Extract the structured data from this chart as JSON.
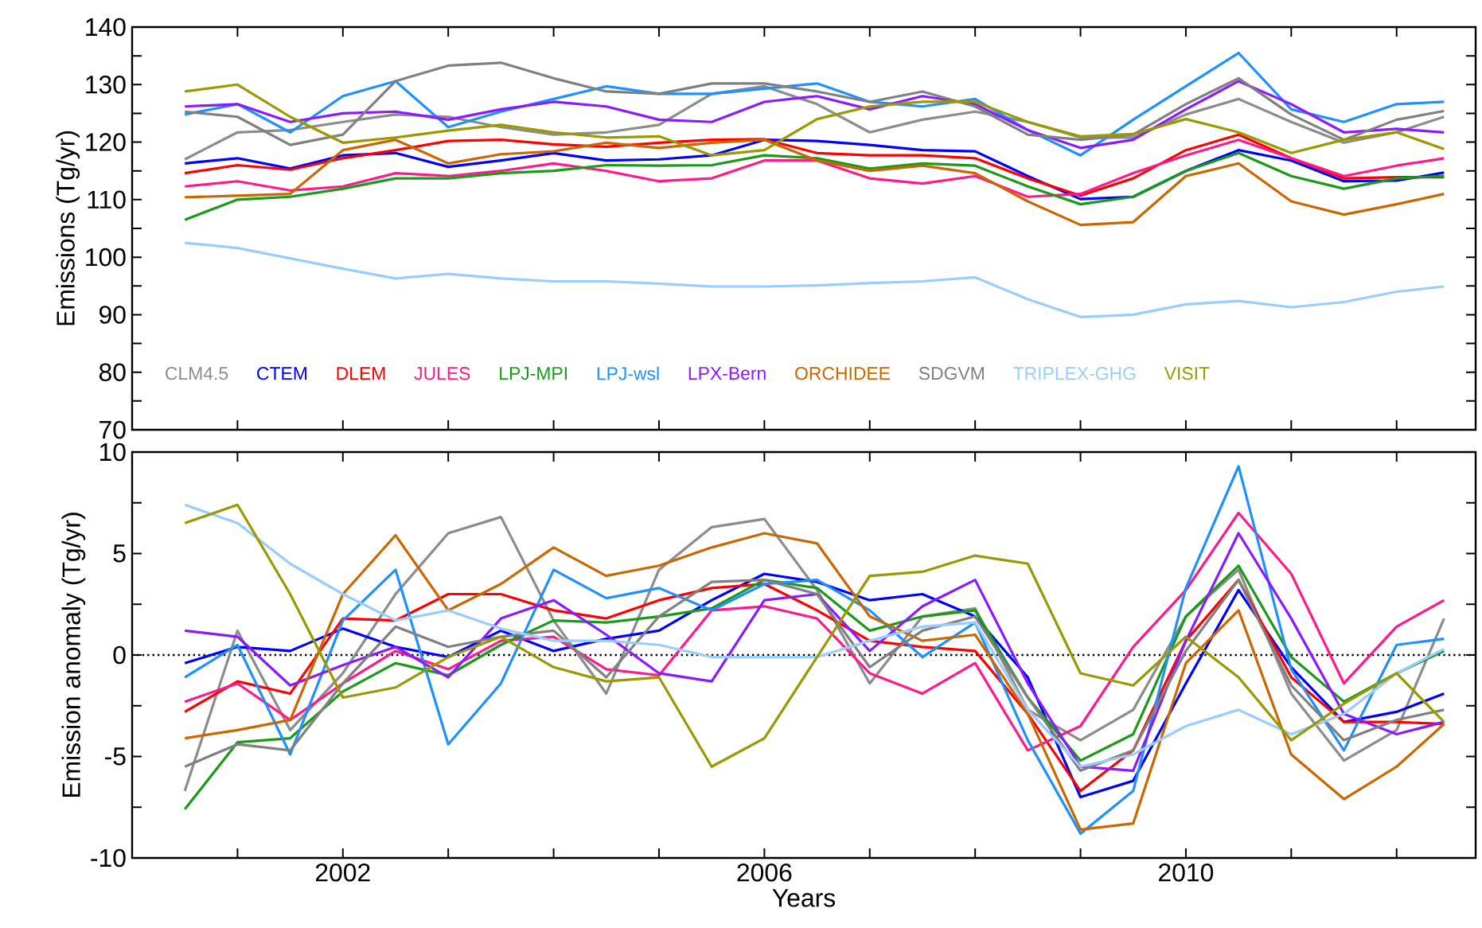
{
  "chart_data": [
    {
      "type": "line",
      "ylabel": "Emissions (Tg/yr)",
      "legend": "bottom",
      "tick_labels": "y",
      "x": [
        2000.5,
        2001,
        2001.5,
        2002,
        2002.5,
        2003,
        2003.5,
        2004,
        2004.5,
        2005,
        2005.5,
        2006,
        2006.5,
        2007,
        2007.5,
        2008,
        2008.5,
        2009,
        2009.5,
        2010,
        2010.5,
        2011,
        2011.5,
        2012,
        2012.45
      ],
      "xlim": [
        2000,
        2012.75
      ],
      "xticks": [
        {
          "value": 2001,
          "label": null
        },
        2002,
        {
          "value": 2003,
          "label": null
        },
        {
          "value": 2004,
          "label": null
        },
        {
          "value": 2005,
          "label": null
        },
        2006,
        {
          "value": 2007,
          "label": null
        },
        {
          "value": 2008,
          "label": null
        },
        {
          "value": 2009,
          "label": null
        },
        2010,
        {
          "value": 2011,
          "label": null
        },
        {
          "value": 2012,
          "label": null
        }
      ],
      "ylim": [
        70,
        140
      ],
      "yticks": [
        70,
        {
          "value": 75,
          "label": null
        },
        80,
        {
          "value": 85,
          "label": null
        },
        90,
        {
          "value": 95,
          "label": null
        },
        100,
        {
          "value": 105,
          "label": null
        },
        110,
        {
          "value": 115,
          "label": null
        },
        120,
        {
          "value": 125,
          "label": null
        },
        130,
        {
          "value": 135,
          "label": null
        },
        140
      ],
      "series": [
        {
          "name": "CLM4.5",
          "color": "#8c8c8c",
          "values": [
            117,
            121.7,
            122.1,
            123.5,
            124.8,
            124.4,
            122.6,
            121.3,
            121.7,
            123,
            128.4,
            129.7,
            126.6,
            121.7,
            123.9,
            125.3,
            123.5,
            120.8,
            120.8,
            124.8,
            127.5,
            123.5,
            119.9,
            121.7,
            124.4
          ]
        },
        {
          "name": "CTEM",
          "color": "#0000ff",
          "values": [
            116.3,
            117.2,
            115.4,
            117.7,
            118.1,
            115.7,
            116.8,
            118.1,
            116.8,
            117,
            117.7,
            120.4,
            120.2,
            119.5,
            118.6,
            118.4,
            114.1,
            110.1,
            110.5,
            115,
            118.6,
            116.8,
            113.2,
            113.3,
            114.7
          ]
        },
        {
          "name": "DLEM",
          "color": "#ff0000",
          "values": [
            114.6,
            116,
            115.2,
            117.2,
            118.6,
            120.2,
            120.4,
            119.6,
            119.2,
            119.9,
            120.4,
            120.5,
            118.1,
            117.7,
            117.7,
            117.2,
            113.7,
            110.7,
            113.7,
            118.6,
            121.3,
            117.2,
            113.7,
            113.9,
            113.9
          ]
        },
        {
          "name": "JULES",
          "color": "#ff1a8c",
          "values": [
            112.3,
            113.2,
            111.6,
            112.3,
            114.6,
            114.1,
            115,
            116.3,
            115,
            113.2,
            113.7,
            116.8,
            116.8,
            113.7,
            112.8,
            114.1,
            110.5,
            111,
            114.6,
            117.7,
            120.4,
            117.2,
            114.1,
            115.9,
            117.2
          ]
        },
        {
          "name": "LPJ-MPI",
          "color": "#1a9a1a",
          "values": [
            106.5,
            110,
            110.5,
            111.9,
            113.7,
            113.7,
            114.6,
            115,
            116,
            115.9,
            116,
            117.7,
            117.2,
            115.4,
            116.3,
            115.9,
            112.3,
            109.2,
            110.5,
            115,
            118.1,
            114.1,
            111.9,
            113.7,
            114.1
          ]
        },
        {
          "name": "LPJ-wsl",
          "color": "#1e90ff",
          "values": [
            124.8,
            126.6,
            121.7,
            128,
            130.6,
            122.6,
            125.3,
            127.5,
            129.7,
            128.4,
            128.4,
            129.3,
            130.2,
            127,
            126.2,
            127.5,
            122.1,
            117.7,
            123.9,
            129.7,
            135.5,
            125.7,
            123.5,
            126.6,
            127
          ]
        },
        {
          "name": "LPX-Bern",
          "color": "#8c1aff",
          "values": [
            126.2,
            126.6,
            123.5,
            125,
            125.3,
            123.9,
            125.7,
            127,
            126.2,
            123.9,
            123.5,
            127,
            128,
            125.7,
            128,
            126.6,
            122.1,
            119,
            120.4,
            125.7,
            130.6,
            126.6,
            121.7,
            122.3,
            121.7
          ]
        },
        {
          "name": "ORCHIDEE",
          "color": "#cc6600",
          "values": [
            110.4,
            110.7,
            111,
            118.6,
            120.4,
            116.3,
            117.9,
            118.4,
            119.9,
            119,
            119.9,
            120.4,
            116.8,
            115,
            115.9,
            114.6,
            109.7,
            105.6,
            106.1,
            114.1,
            116.3,
            109.7,
            107.4,
            109.2,
            111
          ]
        },
        {
          "name": "SDGVM",
          "color": "#808080",
          "values": [
            125.3,
            124.4,
            119.5,
            121.3,
            130.6,
            133.3,
            133.8,
            131.1,
            128.8,
            128.4,
            130.2,
            130.2,
            128.8,
            127,
            128.8,
            126.2,
            121.3,
            120.4,
            121.3,
            126.6,
            131.1,
            124.8,
            120.4,
            123.9,
            125.4
          ]
        },
        {
          "name": "TRIPLEX-GHG",
          "color": "#99ccff",
          "values": [
            102.5,
            101.6,
            99.8,
            98,
            96.3,
            97.1,
            96.3,
            95.8,
            95.8,
            95.4,
            94.9,
            94.9,
            95.1,
            95.5,
            95.8,
            96.5,
            92.7,
            89.6,
            90,
            91.8,
            92.4,
            91.3,
            92.2,
            94,
            94.9
          ]
        },
        {
          "name": "VISIT",
          "color": "#999900",
          "values": [
            128.8,
            130,
            124.4,
            119.9,
            120.8,
            122,
            123,
            121.7,
            120.8,
            121,
            117.7,
            118.6,
            124,
            126.2,
            127,
            127,
            123.5,
            121,
            121.4,
            124,
            121.7,
            118.1,
            120.4,
            121.7,
            118.8
          ]
        }
      ]
    },
    {
      "type": "line",
      "xlabel": "Years",
      "ylabel": "Emission anomaly (Tg/yr)",
      "x": [
        2000.5,
        2001,
        2001.5,
        2002,
        2002.5,
        2003,
        2003.5,
        2004,
        2004.5,
        2005,
        2005.5,
        2006,
        2006.5,
        2007,
        2007.5,
        2008,
        2008.5,
        2009,
        2009.5,
        2010,
        2010.5,
        2011,
        2011.5,
        2012,
        2012.45
      ],
      "xlim": [
        2000,
        2012.75
      ],
      "xticks": [
        {
          "value": 2001,
          "label": null
        },
        2002,
        {
          "value": 2003,
          "label": null
        },
        {
          "value": 2004,
          "label": null
        },
        {
          "value": 2005,
          "label": null
        },
        2006,
        {
          "value": 2007,
          "label": null
        },
        {
          "value": 2008,
          "label": null
        },
        {
          "value": 2009,
          "label": null
        },
        2010,
        {
          "value": 2011,
          "label": null
        },
        {
          "value": 2012,
          "label": null
        }
      ],
      "ylim": [
        -10,
        10
      ],
      "yticks": [
        -10,
        {
          "value": -7.5,
          "label": null
        },
        -5,
        {
          "value": -2.5,
          "label": null
        },
        0,
        {
          "value": 2.5,
          "label": null
        },
        5,
        {
          "value": 7.5,
          "label": null
        },
        10
      ],
      "ref_lines": [
        {
          "axis": "y",
          "value": 0,
          "color": "#000000",
          "line_style": "dotted"
        }
      ],
      "series": [
        {
          "color": "#8c8c8c",
          "values": [
            -6.7,
            1.2,
            -3.7,
            -0.9,
            3.0,
            6.0,
            6.8,
            1.7,
            -1.9,
            4.2,
            6.3,
            6.7,
            3.2,
            -1.4,
            1.9,
            2.3,
            -2.7,
            -4.2,
            -2.7,
            1.9,
            4.2,
            -1.9,
            -5.2,
            -3.7,
            1.8
          ]
        },
        {
          "color": "#0000ff",
          "values": [
            -0.4,
            0.4,
            0.2,
            1.3,
            0.4,
            -0.1,
            1.2,
            0.2,
            0.8,
            1.2,
            2.7,
            4.0,
            3.6,
            2.7,
            3.0,
            1.9,
            -1.1,
            -7.0,
            -6.2,
            -1.4,
            3.2,
            -0.6,
            -3.3,
            -2.8,
            -1.9
          ]
        },
        {
          "color": "#ff0000",
          "values": [
            -2.8,
            -1.3,
            -1.9,
            1.8,
            1.7,
            3.0,
            3.0,
            2.2,
            1.8,
            2.7,
            3.3,
            3.5,
            2.2,
            0.7,
            0.4,
            0.2,
            -2.9,
            -6.7,
            -4.7,
            0.7,
            3.7,
            -1.1,
            -3.3,
            -3.3,
            -3.4
          ]
        },
        {
          "color": "#ff1a8c",
          "values": [
            -2.3,
            -1.4,
            -3.2,
            -1.4,
            0.2,
            -0.7,
            0.7,
            0.9,
            -0.7,
            -1.0,
            2.2,
            2.4,
            1.8,
            -0.9,
            -1.9,
            -0.4,
            -4.7,
            -3.5,
            0.4,
            3.2,
            7.0,
            4.0,
            -1.4,
            1.4,
            2.7
          ]
        },
        {
          "color": "#1a9a1a",
          "values": [
            -7.6,
            -4.3,
            -4.1,
            -1.8,
            -0.4,
            -1.0,
            0.5,
            1.7,
            1.6,
            1.9,
            2.3,
            3.7,
            3.3,
            1.2,
            1.9,
            2.2,
            -2.1,
            -5.2,
            -3.9,
            1.9,
            4.4,
            -0.1,
            -2.3,
            -0.9,
            0.2
          ]
        },
        {
          "color": "#1e90ff",
          "values": [
            -1.1,
            0.5,
            -4.9,
            1.7,
            4.2,
            -4.4,
            -1.4,
            4.2,
            2.8,
            3.3,
            2.2,
            3.5,
            3.7,
            2.2,
            -0.1,
            1.6,
            -4.2,
            -8.8,
            -6.7,
            3.3,
            9.3,
            -0.7,
            -4.7,
            0.5,
            0.8
          ]
        },
        {
          "color": "#8c1aff",
          "values": [
            1.2,
            0.9,
            -1.5,
            -0.5,
            0.4,
            -1.1,
            1.8,
            2.7,
            1.0,
            -0.9,
            -1.3,
            2.7,
            3.0,
            0.2,
            2.4,
            3.7,
            -1.4,
            -5.5,
            -5.7,
            0.7,
            6.0,
            1.8,
            -2.9,
            -3.9,
            -3.3
          ]
        },
        {
          "color": "#cc6600",
          "values": [
            -4.1,
            -3.7,
            -3.2,
            3.0,
            5.9,
            2.2,
            3.5,
            5.3,
            3.9,
            4.4,
            5.3,
            6.0,
            5.5,
            1.9,
            0.7,
            1.0,
            -2.9,
            -8.6,
            -8.3,
            -0.4,
            2.2,
            -4.9,
            -7.1,
            -5.5,
            -3.4
          ]
        },
        {
          "color": "#808080",
          "values": [
            -5.5,
            -4.4,
            -4.7,
            -1.4,
            1.4,
            0.4,
            0.9,
            1.2,
            -1.1,
            1.9,
            3.6,
            3.7,
            3.0,
            -0.6,
            1.2,
            1.9,
            -2.1,
            -5.7,
            -4.7,
            0.2,
            3.7,
            -1.5,
            -4.2,
            -3.2,
            -2.7
          ]
        },
        {
          "color": "#99ccff",
          "values": [
            7.4,
            6.5,
            4.5,
            3.0,
            1.7,
            2.2,
            1.3,
            0.7,
            0.7,
            0.5,
            -0.1,
            -0.1,
            -0.1,
            0.7,
            1.4,
            1.6,
            -2.7,
            -5.5,
            -4.9,
            -3.5,
            -2.7,
            -3.9,
            -2.9,
            -0.9,
            0.3
          ]
        },
        {
          "color": "#999900",
          "values": [
            6.5,
            7.4,
            3.0,
            -2.1,
            -1.6,
            -0.1,
            0.9,
            -0.6,
            -1.3,
            -1.1,
            -5.5,
            -4.1,
            -0.1,
            3.9,
            4.1,
            4.9,
            4.5,
            -0.9,
            -1.5,
            0.9,
            -1.1,
            -4.2,
            -2.4,
            -0.9,
            -3.3
          ]
        }
      ]
    }
  ]
}
